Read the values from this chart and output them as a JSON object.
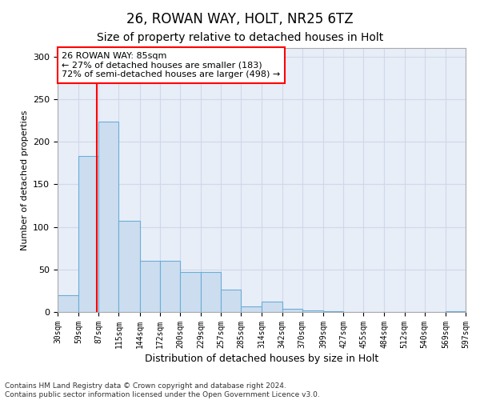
{
  "title1": "26, ROWAN WAY, HOLT, NR25 6TZ",
  "title2": "Size of property relative to detached houses in Holt",
  "xlabel": "Distribution of detached houses by size in Holt",
  "ylabel": "Number of detached properties",
  "footnote": "Contains HM Land Registry data © Crown copyright and database right 2024.\nContains public sector information licensed under the Open Government Licence v3.0.",
  "bin_edges": [
    30,
    59,
    87,
    115,
    144,
    172,
    200,
    229,
    257,
    285,
    314,
    342,
    370,
    399,
    427,
    455,
    484,
    512,
    540,
    569,
    597
  ],
  "bar_heights": [
    20,
    183,
    224,
    107,
    60,
    60,
    47,
    47,
    26,
    7,
    12,
    4,
    2,
    1,
    0,
    0,
    0,
    0,
    0,
    1
  ],
  "tick_labels": [
    "30sqm",
    "59sqm",
    "87sqm",
    "115sqm",
    "144sqm",
    "172sqm",
    "200sqm",
    "229sqm",
    "257sqm",
    "285sqm",
    "314sqm",
    "342sqm",
    "370sqm",
    "399sqm",
    "427sqm",
    "455sqm",
    "484sqm",
    "512sqm",
    "540sqm",
    "569sqm",
    "597sqm"
  ],
  "bar_color": "#ccddf0",
  "bar_edge_color": "#6aaed6",
  "vline_x": 85,
  "vline_color": "red",
  "annotation_text": "26 ROWAN WAY: 85sqm\n← 27% of detached houses are smaller (183)\n72% of semi-detached houses are larger (498) →",
  "annotation_box_color": "white",
  "annotation_box_edge": "red",
  "ylim": [
    0,
    310
  ],
  "yticks": [
    0,
    50,
    100,
    150,
    200,
    250,
    300
  ],
  "grid_color": "#d0d8e8",
  "background_color": "#e8eef8",
  "title1_fontsize": 12,
  "title2_fontsize": 10,
  "xlabel_fontsize": 9,
  "ylabel_fontsize": 8,
  "footnote_fontsize": 6.5
}
